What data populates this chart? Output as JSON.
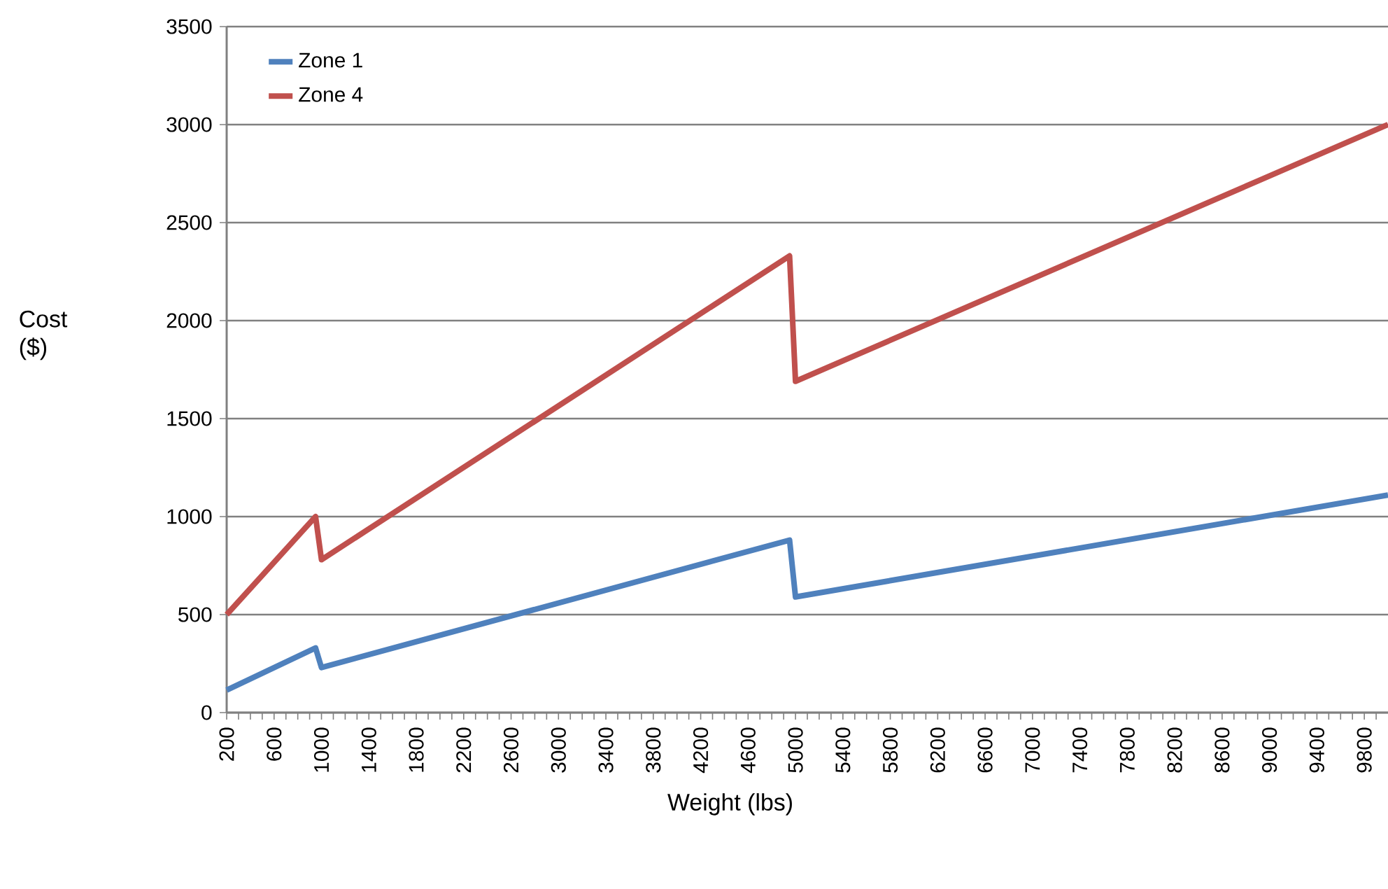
{
  "chart_data": {
    "type": "line",
    "xlabel": "Weight (lbs)",
    "ylabel": "Cost ($)",
    "xlim": [
      200,
      10000
    ],
    "ylim": [
      0,
      3500
    ],
    "xticks": [
      200,
      {
        "value": 300,
        "label": null
      },
      {
        "value": 400,
        "label": null
      },
      {
        "value": 500,
        "label": null
      },
      600,
      {
        "value": 700,
        "label": null
      },
      {
        "value": 800,
        "label": null
      },
      {
        "value": 900,
        "label": null
      },
      1000,
      {
        "value": 1100,
        "label": null
      },
      {
        "value": 1200,
        "label": null
      },
      {
        "value": 1300,
        "label": null
      },
      1400,
      {
        "value": 1500,
        "label": null
      },
      {
        "value": 1600,
        "label": null
      },
      {
        "value": 1700,
        "label": null
      },
      1800,
      {
        "value": 1900,
        "label": null
      },
      {
        "value": 2000,
        "label": null
      },
      {
        "value": 2100,
        "label": null
      },
      2200,
      {
        "value": 2300,
        "label": null
      },
      {
        "value": 2400,
        "label": null
      },
      {
        "value": 2500,
        "label": null
      },
      2600,
      {
        "value": 2700,
        "label": null
      },
      {
        "value": 2800,
        "label": null
      },
      {
        "value": 2900,
        "label": null
      },
      3000,
      {
        "value": 3100,
        "label": null
      },
      {
        "value": 3200,
        "label": null
      },
      {
        "value": 3300,
        "label": null
      },
      3400,
      {
        "value": 3500,
        "label": null
      },
      {
        "value": 3600,
        "label": null
      },
      {
        "value": 3700,
        "label": null
      },
      3800,
      {
        "value": 3900,
        "label": null
      },
      {
        "value": 4000,
        "label": null
      },
      {
        "value": 4100,
        "label": null
      },
      4200,
      {
        "value": 4300,
        "label": null
      },
      {
        "value": 4400,
        "label": null
      },
      {
        "value": 4500,
        "label": null
      },
      4600,
      {
        "value": 4700,
        "label": null
      },
      {
        "value": 4800,
        "label": null
      },
      {
        "value": 4900,
        "label": null
      },
      5000,
      {
        "value": 5100,
        "label": null
      },
      {
        "value": 5200,
        "label": null
      },
      {
        "value": 5300,
        "label": null
      },
      5400,
      {
        "value": 5500,
        "label": null
      },
      {
        "value": 5600,
        "label": null
      },
      {
        "value": 5700,
        "label": null
      },
      5800,
      {
        "value": 5900,
        "label": null
      },
      {
        "value": 6000,
        "label": null
      },
      {
        "value": 6100,
        "label": null
      },
      6200,
      {
        "value": 6300,
        "label": null
      },
      {
        "value": 6400,
        "label": null
      },
      {
        "value": 6500,
        "label": null
      },
      6600,
      {
        "value": 6700,
        "label": null
      },
      {
        "value": 6800,
        "label": null
      },
      {
        "value": 6900,
        "label": null
      },
      7000,
      {
        "value": 7100,
        "label": null
      },
      {
        "value": 7200,
        "label": null
      },
      {
        "value": 7300,
        "label": null
      },
      7400,
      {
        "value": 7500,
        "label": null
      },
      {
        "value": 7600,
        "label": null
      },
      {
        "value": 7700,
        "label": null
      },
      7800,
      {
        "value": 7900,
        "label": null
      },
      {
        "value": 8000,
        "label": null
      },
      {
        "value": 8100,
        "label": null
      },
      8200,
      {
        "value": 8300,
        "label": null
      },
      {
        "value": 8400,
        "label": null
      },
      {
        "value": 8500,
        "label": null
      },
      8600,
      {
        "value": 8700,
        "label": null
      },
      {
        "value": 8800,
        "label": null
      },
      {
        "value": 8900,
        "label": null
      },
      9000,
      {
        "value": 9100,
        "label": null
      },
      {
        "value": 9200,
        "label": null
      },
      {
        "value": 9300,
        "label": null
      },
      9400,
      {
        "value": 9500,
        "label": null
      },
      {
        "value": 9600,
        "label": null
      },
      {
        "value": 9700,
        "label": null
      },
      9800,
      {
        "value": 9900,
        "label": null
      }
    ],
    "yticks": [
      0,
      500,
      1000,
      1500,
      2000,
      2500,
      3000,
      3500
    ],
    "grid": "y",
    "legend": "top left",
    "marker": "none",
    "line_style": "solid",
    "series": [
      {
        "name": "Zone 1",
        "color": "#4f81bd",
        "x": [
          200,
          950,
          1000,
          4950,
          5000,
          10000
        ],
        "values": [
          115,
          330,
          230,
          880,
          590,
          1110
        ]
      },
      {
        "name": "Zone 4",
        "color": "#c0504d",
        "x": [
          200,
          950,
          1000,
          4950,
          5000,
          10000
        ],
        "values": [
          500,
          1000,
          780,
          2330,
          1690,
          3000
        ]
      }
    ]
  }
}
